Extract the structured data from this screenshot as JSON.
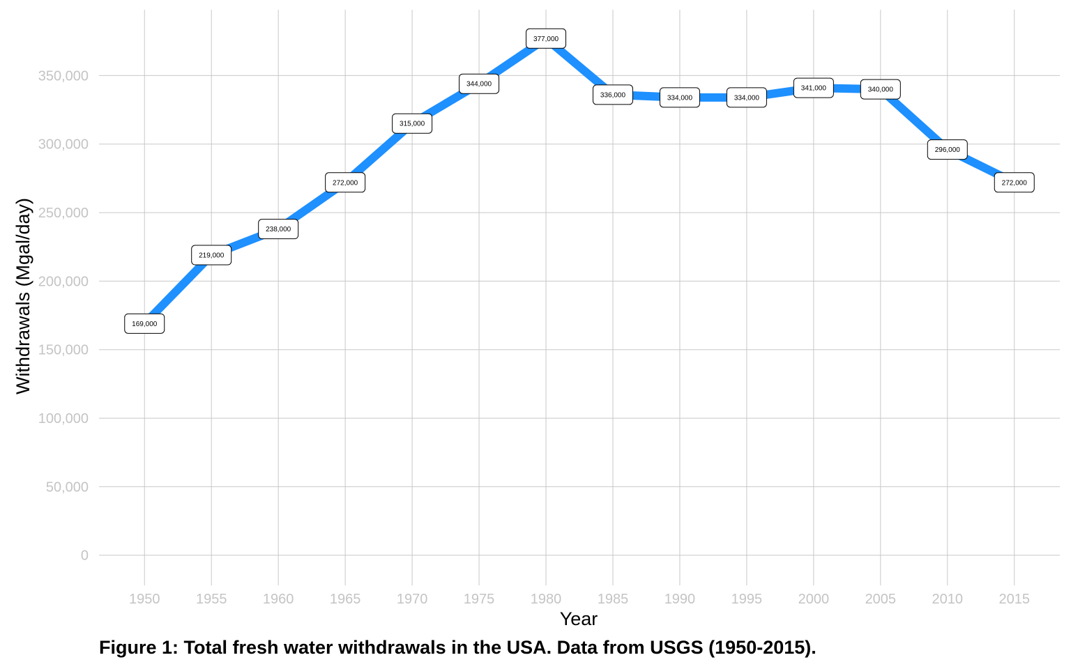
{
  "chart_data": {
    "type": "line",
    "title": "",
    "xlabel": "Year",
    "ylabel": "Withdrawals (Mgal/day)",
    "x": [
      1950,
      1955,
      1960,
      1965,
      1970,
      1975,
      1980,
      1985,
      1990,
      1995,
      2000,
      2005,
      2010,
      2015
    ],
    "values": [
      169000,
      219000,
      238000,
      272000,
      315000,
      344000,
      377000,
      336000,
      334000,
      334000,
      341000,
      340000,
      296000,
      272000
    ],
    "data_labels": [
      "169,000",
      "219,000",
      "238,000",
      "272,000",
      "315,000",
      "344,000",
      "377,000",
      "336,000",
      "334,000",
      "334,000",
      "341,000",
      "340,000",
      "296,000",
      "272,000"
    ],
    "x_ticks": [
      "1950",
      "1955",
      "1960",
      "1965",
      "1970",
      "1975",
      "1980",
      "1985",
      "1990",
      "1995",
      "2000",
      "2005",
      "2010",
      "2015"
    ],
    "y_ticks": [
      0,
      50000,
      100000,
      150000,
      200000,
      250000,
      300000,
      350000
    ],
    "y_tick_labels": [
      "0",
      "50,000",
      "100,000",
      "150,000",
      "200,000",
      "250,000",
      "300,000",
      "350,000"
    ],
    "ylim": [
      -22000,
      398000
    ],
    "xlim": [
      1946.6,
      2018.4
    ],
    "grid": true,
    "line_color": "#1e90ff",
    "legend": "none"
  },
  "caption": "Figure 1: Total fresh water withdrawals in the USA. Data from USGS (1950-2015)."
}
